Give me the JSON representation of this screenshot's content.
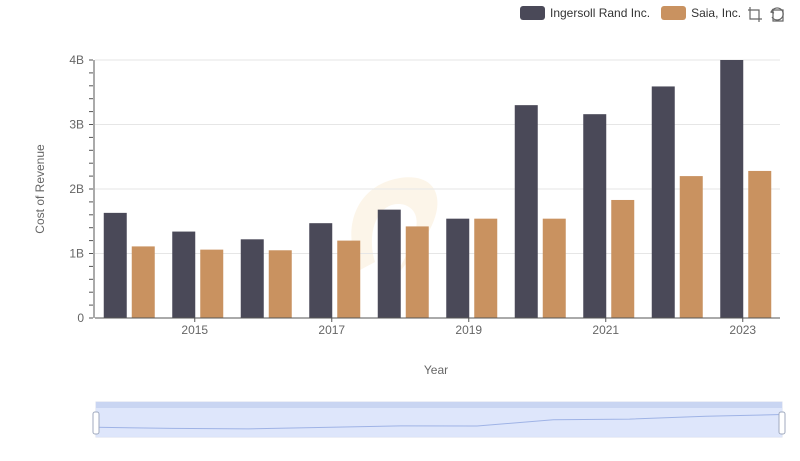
{
  "legend": [
    {
      "label": "Ingersoll Rand Inc.",
      "color": "#4a4958"
    },
    {
      "label": "Saia, Inc.",
      "color": "#c99260"
    }
  ],
  "toolbar": {
    "zoom_icon": "zoom-select-icon",
    "restore_icon": "zoom-reset-icon"
  },
  "chart_data": {
    "type": "bar",
    "xlabel": "Year",
    "ylabel": "Cost of Revenue",
    "categories": [
      "2014",
      "2015",
      "2016",
      "2017",
      "2018",
      "2019",
      "2020",
      "2021",
      "2022",
      "2023"
    ],
    "x_tick_labels": [
      "2015",
      "2017",
      "2019",
      "2021",
      "2023"
    ],
    "y_tick_labels": [
      "0",
      "1B",
      "2B",
      "3B",
      "4B"
    ],
    "ylim": [
      0,
      4000000000
    ],
    "grid": true,
    "legend_position": "top-right",
    "series": [
      {
        "name": "Ingersoll Rand Inc.",
        "color": "#4a4958",
        "values": [
          1630000000,
          1340000000,
          1220000000,
          1470000000,
          1680000000,
          1540000000,
          3300000000,
          3160000000,
          3590000000,
          4000000000
        ]
      },
      {
        "name": "Saia, Inc.",
        "color": "#c99260",
        "values": [
          1110000000,
          1060000000,
          1050000000,
          1200000000,
          1420000000,
          1540000000,
          1540000000,
          1830000000,
          2200000000,
          2280000000
        ]
      }
    ]
  }
}
